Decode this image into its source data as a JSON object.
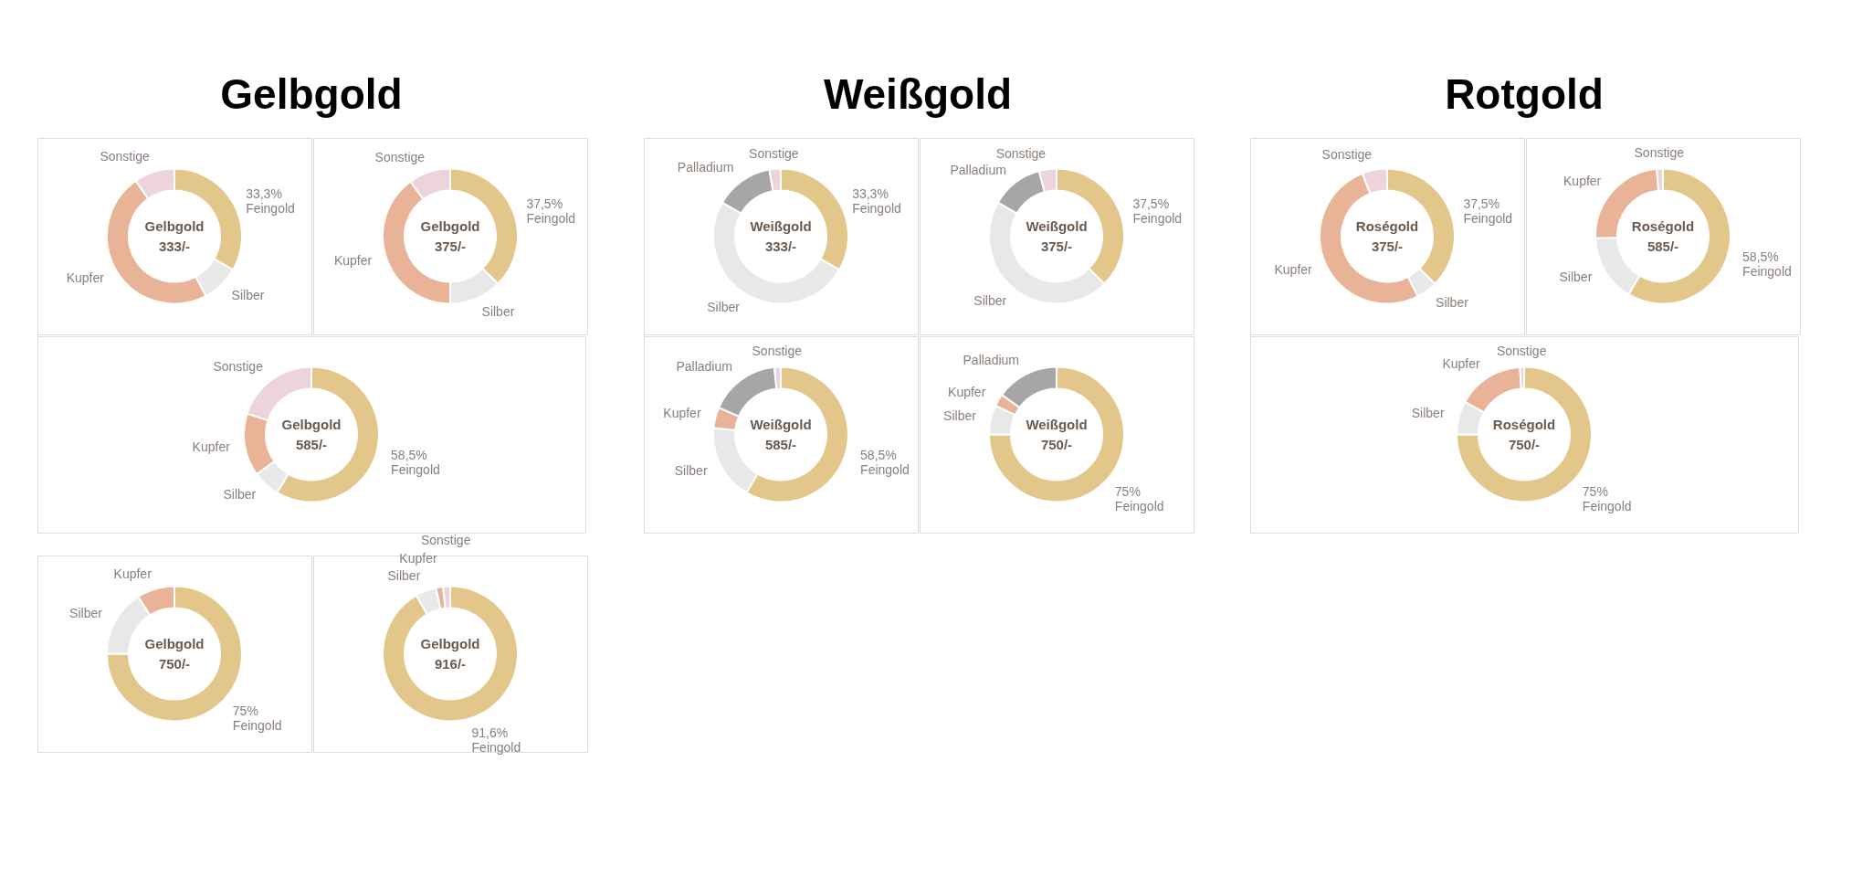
{
  "chart_data": [
    {
      "type": "other",
      "title": "Gelbgold"
    },
    {
      "type": "donut",
      "title": "Gelbgold",
      "subtitle": "333/-",
      "categories": [
        "Feingold",
        "Silber",
        "Kupfer",
        "Sonstige"
      ],
      "values": [
        33.3,
        9,
        48,
        9.7
      ],
      "value_labels": [
        "33,3%",
        null,
        null,
        null
      ],
      "colors": [
        "#e3c68a",
        "#e8e8e8",
        "#e8b396",
        "#edd3dc"
      ]
    },
    {
      "type": "donut",
      "title": "Gelbgold",
      "subtitle": "375/-",
      "categories": [
        "Feingold",
        "Silber",
        "Kupfer",
        "Sonstige"
      ],
      "values": [
        37.5,
        12.5,
        40,
        10
      ],
      "value_labels": [
        "37,5%",
        null,
        null,
        null
      ],
      "colors": [
        "#e3c68a",
        "#e8e8e8",
        "#e8b396",
        "#edd3dc"
      ]
    },
    {
      "type": "donut",
      "title": "Gelbgold",
      "subtitle": "585/-",
      "categories": [
        "Feingold",
        "Silber",
        "Kupfer",
        "Sonstige"
      ],
      "values": [
        58.5,
        6.5,
        15,
        20
      ],
      "value_labels": [
        "58,5%",
        null,
        null,
        null
      ],
      "colors": [
        "#e3c68a",
        "#e8e8e8",
        "#e8b396",
        "#edd3dc"
      ]
    },
    {
      "type": "donut",
      "title": "Gelbgold",
      "subtitle": "750/-",
      "categories": [
        "Feingold",
        "Silber",
        "Kupfer"
      ],
      "values": [
        75,
        16,
        9
      ],
      "value_labels": [
        "75%",
        null,
        null
      ],
      "colors": [
        "#e3c68a",
        "#e8e8e8",
        "#e8b396"
      ]
    },
    {
      "type": "donut",
      "title": "Gelbgold",
      "subtitle": "916/-",
      "categories": [
        "Feingold",
        "Silber",
        "Kupfer",
        "Sonstige"
      ],
      "values": [
        91.6,
        5,
        1.7,
        1.7
      ],
      "value_labels": [
        "91,6%",
        null,
        null,
        null
      ],
      "colors": [
        "#e3c68a",
        "#e8e8e8",
        "#e8b396",
        "#edd3dc"
      ]
    },
    {
      "type": "other",
      "title": "Weißgold"
    },
    {
      "type": "donut",
      "title": "Weißgold",
      "subtitle": "333/-",
      "categories": [
        "Feingold",
        "Silber",
        "Palladium",
        "Sonstige"
      ],
      "values": [
        33.3,
        50,
        14,
        2.7
      ],
      "value_labels": [
        "33,3%",
        null,
        null,
        null
      ],
      "colors": [
        "#e3c68a",
        "#e8e8e8",
        "#a6a6a6",
        "#edd3dc"
      ]
    },
    {
      "type": "donut",
      "title": "Weißgold",
      "subtitle": "375/-",
      "categories": [
        "Feingold",
        "Silber",
        "Palladium",
        "Sonstige"
      ],
      "values": [
        37.5,
        45.8,
        12.5,
        4.2
      ],
      "value_labels": [
        "37,5%",
        null,
        null,
        null
      ],
      "colors": [
        "#e3c68a",
        "#e8e8e8",
        "#a6a6a6",
        "#edd3dc"
      ]
    },
    {
      "type": "donut",
      "title": "Weißgold",
      "subtitle": "585/-",
      "categories": [
        "Feingold",
        "Silber",
        "Kupfer",
        "Palladium",
        "Sonstige"
      ],
      "values": [
        58.5,
        18,
        5,
        17,
        1.5
      ],
      "value_labels": [
        "58,5%",
        null,
        null,
        null,
        null
      ],
      "colors": [
        "#e3c68a",
        "#e8e8e8",
        "#e8b396",
        "#a6a6a6",
        "#edd3dc"
      ]
    },
    {
      "type": "donut",
      "title": "Weißgold",
      "subtitle": "750/-",
      "categories": [
        "Feingold",
        "Silber",
        "Kupfer",
        "Palladium"
      ],
      "values": [
        75,
        7,
        3,
        15
      ],
      "value_labels": [
        "75%",
        null,
        null,
        null
      ],
      "colors": [
        "#e3c68a",
        "#e8e8e8",
        "#e8b396",
        "#a6a6a6"
      ]
    },
    {
      "type": "other",
      "title": "Rotgold"
    },
    {
      "type": "donut",
      "title": "Roségold",
      "subtitle": "375/-",
      "categories": [
        "Feingold",
        "Silber",
        "Kupfer",
        "Sonstige"
      ],
      "values": [
        37.5,
        5,
        51.5,
        6
      ],
      "value_labels": [
        "37,5%",
        null,
        null,
        null
      ],
      "colors": [
        "#e3c68a",
        "#e8e8e8",
        "#e8b396",
        "#edd3dc"
      ]
    },
    {
      "type": "donut",
      "title": "Roségold",
      "subtitle": "585/-",
      "categories": [
        "Feingold",
        "Silber",
        "Kupfer",
        "Sonstige"
      ],
      "values": [
        58.5,
        16,
        24,
        1.5
      ],
      "value_labels": [
        "58,5%",
        null,
        null,
        null
      ],
      "colors": [
        "#e3c68a",
        "#e8e8e8",
        "#e8b396",
        "#edd3dc"
      ]
    },
    {
      "type": "donut",
      "title": "Roségold",
      "subtitle": "750/-",
      "categories": [
        "Feingold",
        "Silber",
        "Kupfer",
        "Sonstige"
      ],
      "values": [
        75,
        8,
        16,
        1
      ],
      "value_labels": [
        "75%",
        null,
        null,
        null
      ],
      "colors": [
        "#e3c68a",
        "#e8e8e8",
        "#e8b396",
        "#edd3dc"
      ]
    }
  ]
}
